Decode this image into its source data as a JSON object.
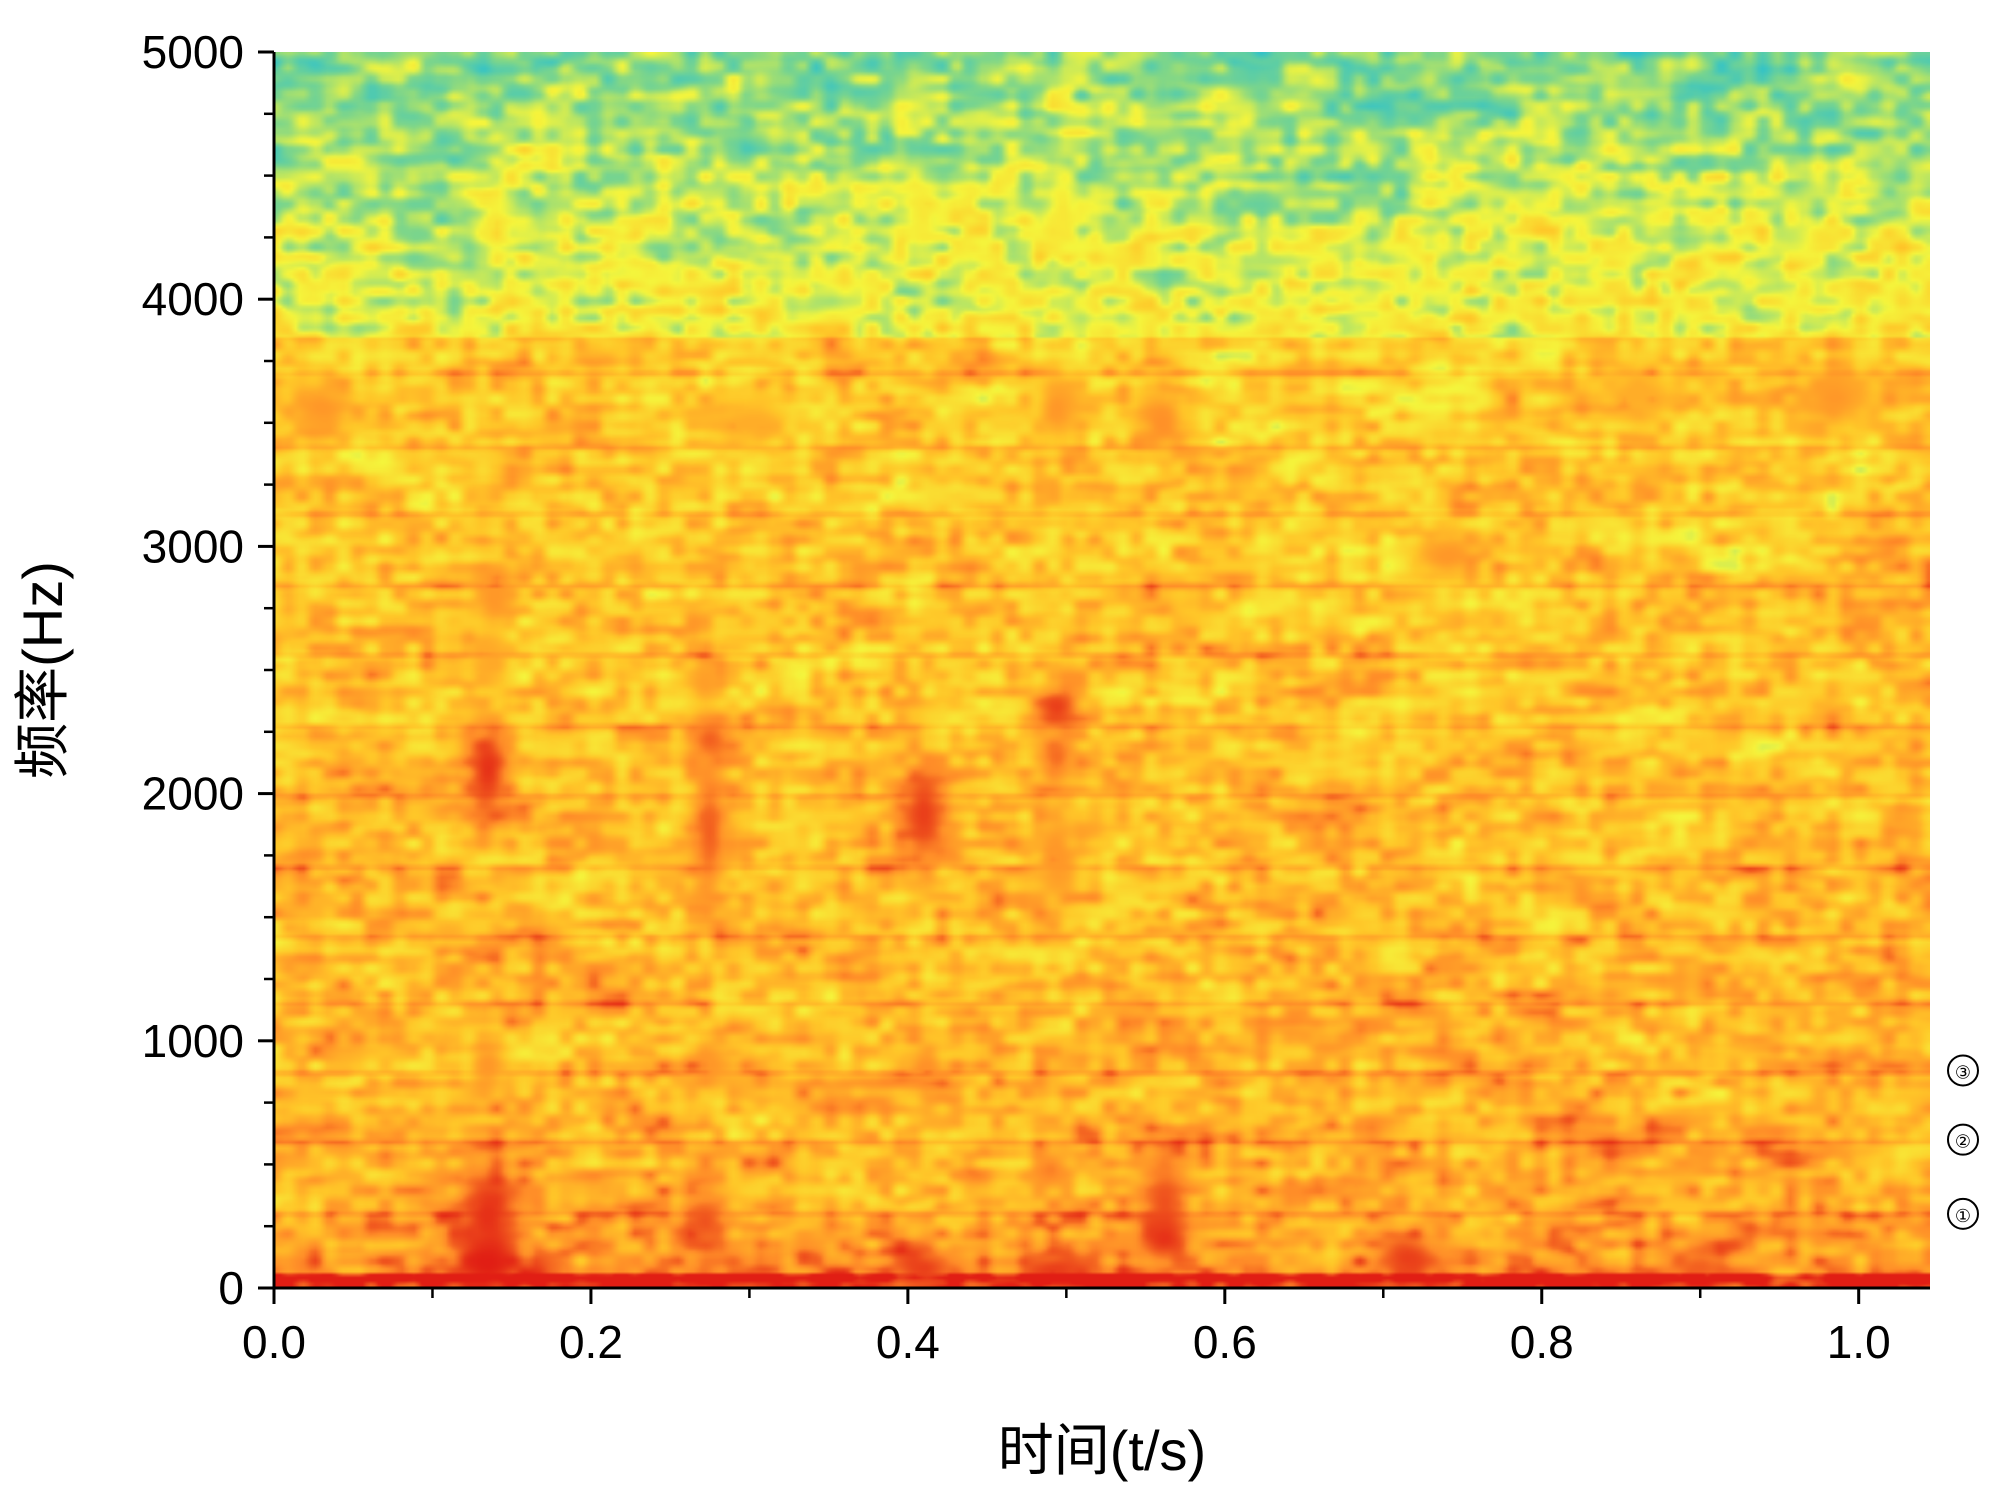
{
  "chart_data": {
    "type": "heatmap",
    "title": "",
    "xlabel": "时间(t/s)",
    "ylabel": "频率(Hz)",
    "xlim": [
      0.0,
      1.045
    ],
    "ylim": [
      0,
      5000
    ],
    "x_ticks": [
      "0.0",
      "0.2",
      "0.4",
      "0.6",
      "0.8",
      "1.0"
    ],
    "x_tick_values": [
      0.0,
      0.2,
      0.4,
      0.6,
      0.8,
      1.0
    ],
    "x_minor_tick_values": [
      0.1,
      0.3,
      0.5,
      0.7,
      0.9
    ],
    "y_ticks": [
      "0",
      "1000",
      "2000",
      "3000",
      "4000",
      "5000"
    ],
    "y_tick_values": [
      0,
      1000,
      2000,
      3000,
      4000,
      5000
    ],
    "y_minor_step": 250,
    "colormap": [
      "#0096c8",
      "#33c3c8",
      "#7ed68a",
      "#f5f53c",
      "#ffc628",
      "#ff8c28",
      "#e11e14"
    ],
    "high_energy_above_3900hz": false,
    "harmonic_lines_hz": [
      40,
      300,
      590,
      870,
      1150,
      1420,
      1700,
      1990,
      2270,
      2560,
      2840,
      3130,
      3400,
      3700
    ],
    "markers": [
      {
        "label": "①",
        "y": 300
      },
      {
        "label": "②",
        "y": 600
      },
      {
        "label": "③",
        "y": 880
      }
    ],
    "blobs": [
      {
        "t": 0.135,
        "f": 2100,
        "w": 0.016,
        "h": 220,
        "level": 0.97
      },
      {
        "t": 0.139,
        "f": 2800,
        "w": 0.013,
        "h": 140,
        "level": 0.8
      },
      {
        "t": 0.137,
        "f": 2550,
        "w": 0.011,
        "h": 100,
        "level": 0.75
      },
      {
        "t": 0.135,
        "f": 900,
        "w": 0.012,
        "h": 110,
        "level": 0.8
      },
      {
        "t": 0.135,
        "f": 300,
        "w": 0.02,
        "h": 220,
        "level": 0.97
      },
      {
        "t": 0.135,
        "f": 100,
        "w": 0.022,
        "h": 120,
        "level": 1.0
      },
      {
        "t": 0.139,
        "f": 4300,
        "w": 0.01,
        "h": 100,
        "level": 0.55
      },
      {
        "t": 0.275,
        "f": 2220,
        "w": 0.016,
        "h": 100,
        "level": 0.9
      },
      {
        "t": 0.275,
        "f": 1850,
        "w": 0.013,
        "h": 300,
        "level": 0.9
      },
      {
        "t": 0.272,
        "f": 2450,
        "w": 0.011,
        "h": 90,
        "level": 0.78
      },
      {
        "t": 0.275,
        "f": 900,
        "w": 0.013,
        "h": 90,
        "level": 0.8
      },
      {
        "t": 0.272,
        "f": 270,
        "w": 0.016,
        "h": 130,
        "level": 0.92
      },
      {
        "t": 0.41,
        "f": 1920,
        "w": 0.016,
        "h": 240,
        "level": 0.95
      },
      {
        "t": 0.41,
        "f": 880,
        "w": 0.013,
        "h": 90,
        "level": 0.82
      },
      {
        "t": 0.41,
        "f": 80,
        "w": 0.02,
        "h": 80,
        "level": 0.95
      },
      {
        "t": 0.41,
        "f": 4350,
        "w": 0.009,
        "h": 150,
        "level": 0.55
      },
      {
        "t": 0.494,
        "f": 2350,
        "w": 0.015,
        "h": 90,
        "level": 0.95
      },
      {
        "t": 0.494,
        "f": 2150,
        "w": 0.013,
        "h": 100,
        "level": 0.88
      },
      {
        "t": 0.494,
        "f": 1750,
        "w": 0.012,
        "h": 200,
        "level": 0.8
      },
      {
        "t": 0.494,
        "f": 3560,
        "w": 0.015,
        "h": 150,
        "level": 0.8
      },
      {
        "t": 0.49,
        "f": 480,
        "w": 0.013,
        "h": 90,
        "level": 0.85
      },
      {
        "t": 0.494,
        "f": 70,
        "w": 0.02,
        "h": 80,
        "level": 0.95
      },
      {
        "t": 0.498,
        "f": 4350,
        "w": 0.01,
        "h": 200,
        "level": 0.55
      },
      {
        "t": 0.562,
        "f": 350,
        "w": 0.016,
        "h": 220,
        "level": 0.92
      },
      {
        "t": 0.562,
        "f": 200,
        "w": 0.016,
        "h": 90,
        "level": 0.97
      },
      {
        "t": 0.56,
        "f": 3500,
        "w": 0.016,
        "h": 120,
        "level": 0.82
      },
      {
        "t": 0.715,
        "f": 120,
        "w": 0.02,
        "h": 100,
        "level": 0.95
      },
      {
        "t": 0.74,
        "f": 2960,
        "w": 0.02,
        "h": 90,
        "level": 0.8
      },
      {
        "t": 0.9,
        "f": 80,
        "w": 0.02,
        "h": 80,
        "level": 0.9
      },
      {
        "t": 0.985,
        "f": 3600,
        "w": 0.03,
        "h": 130,
        "level": 0.8
      },
      {
        "t": 0.3,
        "f": 3500,
        "w": 0.03,
        "h": 100,
        "level": 0.74
      },
      {
        "t": 0.03,
        "f": 3560,
        "w": 0.025,
        "h": 120,
        "level": 0.8
      },
      {
        "t": 0.86,
        "f": 3620,
        "w": 0.03,
        "h": 110,
        "level": 0.74
      }
    ]
  }
}
